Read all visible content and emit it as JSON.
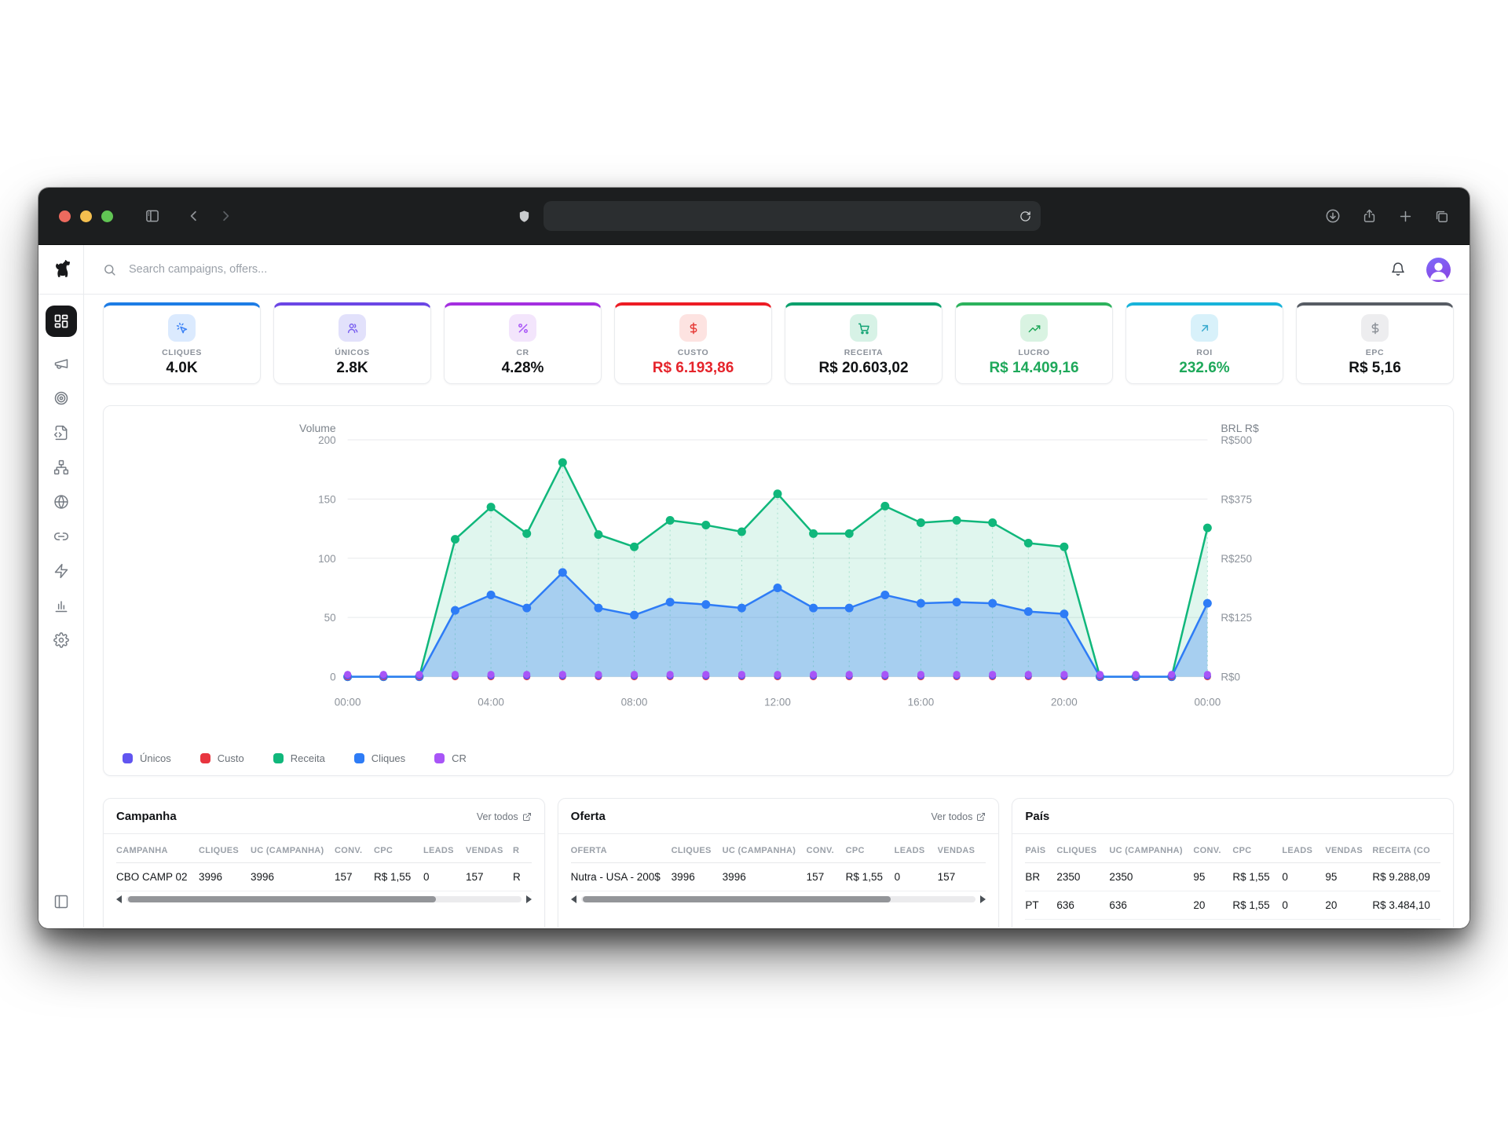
{
  "browser": {
    "traffic_lights": [
      "close",
      "minimize",
      "zoom"
    ],
    "left_icons": [
      "sidebar-toggle-icon",
      "back-icon",
      "forward-icon"
    ],
    "url_icons": [
      "shield-icon",
      "reload-icon"
    ],
    "right_icons": [
      "downloads-icon",
      "share-icon",
      "new-tab-icon",
      "tab-overview-icon"
    ]
  },
  "sidebar": {
    "logo_icon": "dog-logo",
    "items": [
      {
        "id": "dashboard",
        "icon": "layout-dashboard",
        "active": true
      },
      {
        "id": "campaigns",
        "icon": "megaphone",
        "active": false
      },
      {
        "id": "targeting",
        "icon": "target",
        "active": false
      },
      {
        "id": "scripts",
        "icon": "file-code",
        "active": false
      },
      {
        "id": "network",
        "icon": "network",
        "active": false
      },
      {
        "id": "domains",
        "icon": "globe",
        "active": false
      },
      {
        "id": "links",
        "icon": "link",
        "active": false
      },
      {
        "id": "automation",
        "icon": "zap",
        "active": false
      },
      {
        "id": "reports",
        "icon": "bar-chart",
        "active": false
      },
      {
        "id": "settings",
        "icon": "settings",
        "active": false
      }
    ],
    "bottom_icon": "panel-left"
  },
  "topbar": {
    "search_placeholder": "Search campaigns, offers...",
    "search_icon": "search",
    "bell_icon": "bell",
    "avatar_icon": "user"
  },
  "kpis": [
    {
      "label": "CLIQUES",
      "value": "4.0K",
      "accent": "#1d7ce5",
      "tile_bg": "#dbeafe",
      "icon_color": "#3b82f6",
      "value_color": "#101214",
      "icon": "pointer-click"
    },
    {
      "label": "ÚNICOS",
      "value": "2.8K",
      "accent": "#6b46e5",
      "tile_bg": "#e2e1fb",
      "icon_color": "#7b61f0",
      "value_color": "#101214",
      "icon": "users"
    },
    {
      "label": "CR",
      "value": "4.28%",
      "accent": "#a42fe0",
      "tile_bg": "#f3e5fc",
      "icon_color": "#a855f7",
      "value_color": "#101214",
      "icon": "percent"
    },
    {
      "label": "CUSTO",
      "value": "R$ 6.193,86",
      "accent": "#ed1c24",
      "tile_bg": "#fde3e1",
      "icon_color": "#e53935",
      "value_color": "#e5242b",
      "icon": "dollar"
    },
    {
      "label": "RECEITA",
      "value": "R$ 20.603,02",
      "accent": "#0aa06c",
      "tile_bg": "#d7f2e6",
      "icon_color": "#13a374",
      "value_color": "#101214",
      "icon": "cart"
    },
    {
      "label": "LUCRO",
      "value": "R$ 14.409,16",
      "accent": "#2cb25c",
      "tile_bg": "#d9f3e2",
      "icon_color": "#1fa85a",
      "value_color": "#1ea85a",
      "icon": "trending-up"
    },
    {
      "label": "ROI",
      "value": "232.6%",
      "accent": "#17b3da",
      "tile_bg": "#d8f1fa",
      "icon_color": "#3aabcf",
      "value_color": "#1ea85a",
      "icon": "arrow-up-right"
    },
    {
      "label": "EPC",
      "value": "R$ 5,16",
      "accent": "#575c64",
      "tile_bg": "#ededef",
      "icon_color": "#8b9097",
      "value_color": "#101214",
      "icon": "dollar"
    }
  ],
  "chart_data": {
    "type": "area",
    "left_axis": {
      "label": "Volume",
      "min": 0,
      "max": 200,
      "ticks": [
        0,
        50,
        100,
        150,
        200
      ]
    },
    "right_axis": {
      "label": "BRL R$",
      "min": 0,
      "max": 500,
      "ticks": [
        "R$0",
        "R$125",
        "R$250",
        "R$375",
        "R$500"
      ]
    },
    "x_hours": [
      "00:00",
      "01:00",
      "02:00",
      "03:00",
      "04:00",
      "05:00",
      "06:00",
      "07:00",
      "08:00",
      "09:00",
      "10:00",
      "11:00",
      "12:00",
      "13:00",
      "14:00",
      "15:00",
      "16:00",
      "17:00",
      "18:00",
      "19:00",
      "20:00",
      "21:00",
      "22:00",
      "23:00",
      "00:00"
    ],
    "x_tick_labels": [
      "00:00",
      "04:00",
      "08:00",
      "12:00",
      "16:00",
      "20:00",
      "00:00"
    ],
    "series": [
      {
        "name": "Receita",
        "axis": "right",
        "color": "#10b77b",
        "fill_opacity": 0.13,
        "values": [
          0,
          0,
          0,
          290,
          358,
          302,
          452,
          300,
          274,
          330,
          320,
          306,
          386,
          302,
          302,
          360,
          325,
          330,
          325,
          282,
          274,
          0,
          0,
          0,
          314
        ]
      },
      {
        "name": "Cliques",
        "axis": "left",
        "color": "#2e7cf6",
        "fill_opacity": 0.32,
        "values": [
          0,
          0,
          0,
          56,
          69,
          58,
          88,
          58,
          52,
          63,
          61,
          58,
          75,
          58,
          58,
          69,
          62,
          63,
          62,
          55,
          53,
          0,
          0,
          0,
          62
        ]
      },
      {
        "name": "Custo",
        "axis": "left",
        "color": "#e8353f",
        "fill_opacity": 0,
        "values": [
          0,
          0,
          0,
          0,
          0,
          0,
          0,
          0,
          0,
          0,
          0,
          0,
          0,
          0,
          0,
          0,
          0,
          0,
          0,
          0,
          0,
          0,
          0,
          0,
          0
        ]
      },
      {
        "name": "Únicos",
        "axis": "left",
        "color": "#6155f0",
        "fill_opacity": 0,
        "values": [
          0,
          0,
          0,
          0,
          0,
          0,
          0,
          0,
          0,
          0,
          0,
          0,
          0,
          0,
          0,
          0,
          0,
          0,
          0,
          0,
          0,
          0,
          0,
          0,
          0
        ]
      },
      {
        "name": "CR",
        "axis": "left",
        "color": "#a855f7",
        "fill_opacity": 0,
        "values": [
          2,
          2,
          2,
          2,
          2,
          2,
          2,
          2,
          2,
          2,
          2,
          2,
          2,
          2,
          2,
          2,
          2,
          2,
          2,
          2,
          2,
          2,
          2,
          2,
          2
        ]
      }
    ],
    "legend": [
      {
        "label": "Únicos",
        "color": "#6155f0"
      },
      {
        "label": "Custo",
        "color": "#e8353f"
      },
      {
        "label": "Receita",
        "color": "#10b77b"
      },
      {
        "label": "Cliques",
        "color": "#2e7cf6"
      },
      {
        "label": "CR",
        "color": "#a855f7"
      }
    ]
  },
  "tables": [
    {
      "id": "campanha",
      "title": "Campanha",
      "link": "Ver todos",
      "headers": [
        "CAMPANHA",
        "CLIQUES",
        "UC (CAMPANHA)",
        "CONV.",
        "CPC",
        "LEADS",
        "VENDAS",
        "R"
      ],
      "rows": [
        [
          "CBO CAMP 02",
          "3996",
          "3996",
          "157",
          "R$ 1,55",
          "0",
          "157",
          "R"
        ]
      ]
    },
    {
      "id": "oferta",
      "title": "Oferta",
      "link": "Ver todos",
      "headers": [
        "OFERTA",
        "CLIQUES",
        "UC (CAMPANHA)",
        "CONV.",
        "CPC",
        "LEADS",
        "VENDAS"
      ],
      "rows": [
        [
          "Nutra - USA - 200$",
          "3996",
          "3996",
          "157",
          "R$ 1,55",
          "0",
          "157"
        ]
      ]
    },
    {
      "id": "pais",
      "title": "País",
      "link": null,
      "headers": [
        "PAÍS",
        "CLIQUES",
        "UC (CAMPANHA)",
        "CONV.",
        "CPC",
        "LEADS",
        "VENDAS",
        "RECEITA (CO"
      ],
      "rows": [
        [
          "BR",
          "2350",
          "2350",
          "95",
          "R$ 1,55",
          "0",
          "95",
          "R$ 9.288,09"
        ],
        [
          "PT",
          "636",
          "636",
          "20",
          "R$ 1,55",
          "0",
          "20",
          "R$ 3.484,10"
        ]
      ]
    }
  ]
}
